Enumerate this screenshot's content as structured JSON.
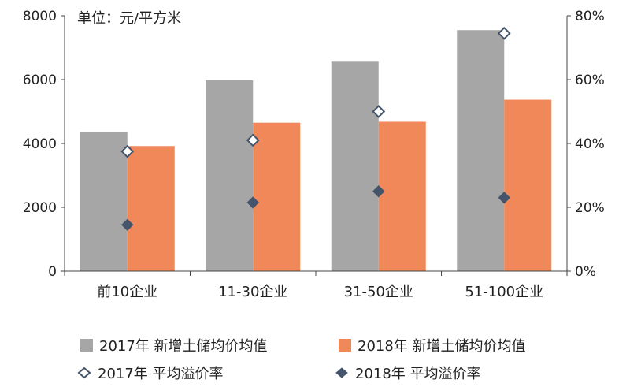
{
  "chart_data": {
    "type": "bar",
    "unit_label": "单位：元/平方米",
    "categories": [
      "前10企业",
      "11-30企业",
      "31-50企业",
      "51-100企业"
    ],
    "y_left": {
      "ylim": [
        0,
        8000
      ],
      "ticks": [
        "0",
        "2000",
        "4000",
        "6000",
        "8000"
      ]
    },
    "y_right": {
      "ylim": [
        0,
        0.8
      ],
      "ticks": [
        "0%",
        "20%",
        "40%",
        "60%",
        "80%"
      ]
    },
    "series": [
      {
        "name": "2017年 新增土储均价均值",
        "type": "bar",
        "axis": "left",
        "color": "#a6a6a6",
        "values": [
          4350,
          5980,
          6560,
          7550
        ]
      },
      {
        "name": "2018年 新增土储均价均值",
        "type": "bar",
        "axis": "left",
        "color": "#f0885a",
        "values": [
          3920,
          4650,
          4680,
          5370
        ]
      },
      {
        "name": "2017年 平均溢价率",
        "type": "scatter",
        "marker": "diamond-open",
        "axis": "right",
        "color": "#44546a",
        "values": [
          0.375,
          0.41,
          0.5,
          0.745
        ]
      },
      {
        "name": "2018年 平均溢价率",
        "type": "scatter",
        "marker": "diamond-filled",
        "axis": "right",
        "color": "#44546a",
        "values": [
          0.145,
          0.215,
          0.25,
          0.23
        ]
      }
    ],
    "grid": false,
    "legend": "bottom"
  }
}
